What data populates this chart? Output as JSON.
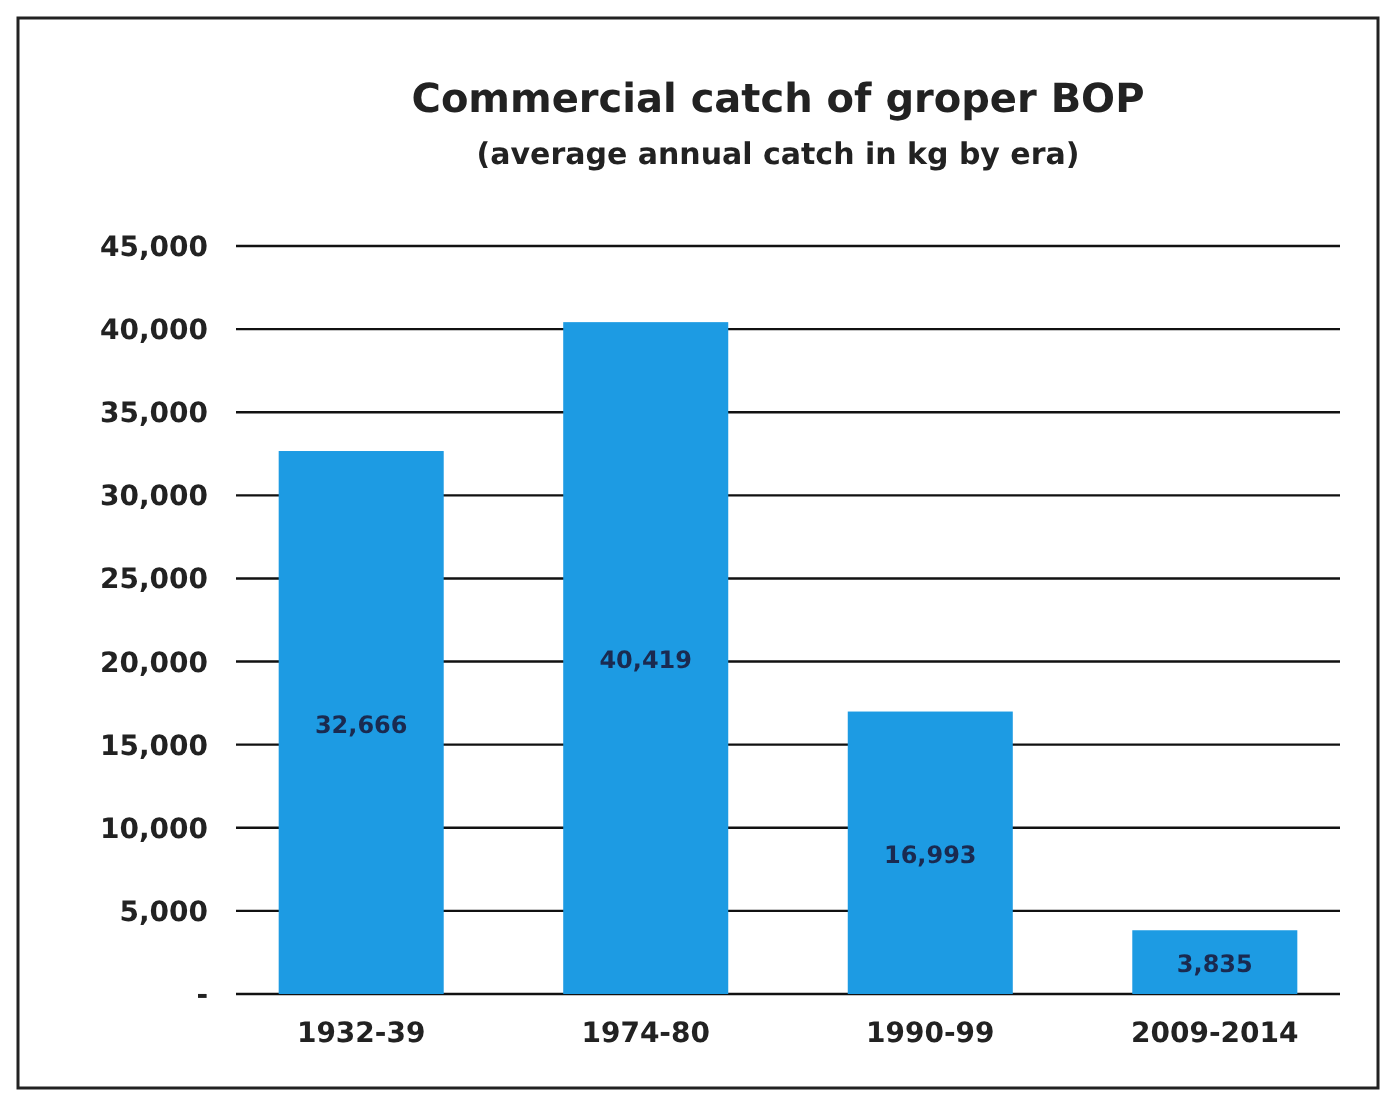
{
  "chart_data": {
    "type": "bar",
    "title": "Commercial catch of groper BOP",
    "subtitle": "(average annual catch in kg by era)",
    "categories": [
      "1932-39",
      "1974-80",
      "1990-99",
      "2009-2014"
    ],
    "values": [
      32666,
      40419,
      16993,
      3835
    ],
    "value_labels": [
      "32,666",
      "40,419",
      "16,993",
      "3,835"
    ],
    "color": "#1d9be3",
    "ylim": [
      0,
      45000
    ],
    "yticks": [
      {
        "value": 0,
        "label": "-"
      },
      {
        "value": 5000,
        "label": "5,000"
      },
      {
        "value": 10000,
        "label": "10,000"
      },
      {
        "value": 15000,
        "label": "15,000"
      },
      {
        "value": 20000,
        "label": "20,000"
      },
      {
        "value": 25000,
        "label": "25,000"
      },
      {
        "value": 30000,
        "label": "30,000"
      },
      {
        "value": 35000,
        "label": "35,000"
      },
      {
        "value": 40000,
        "label": "40,000"
      },
      {
        "value": 45000,
        "label": "45,000"
      }
    ],
    "grid": "y"
  }
}
